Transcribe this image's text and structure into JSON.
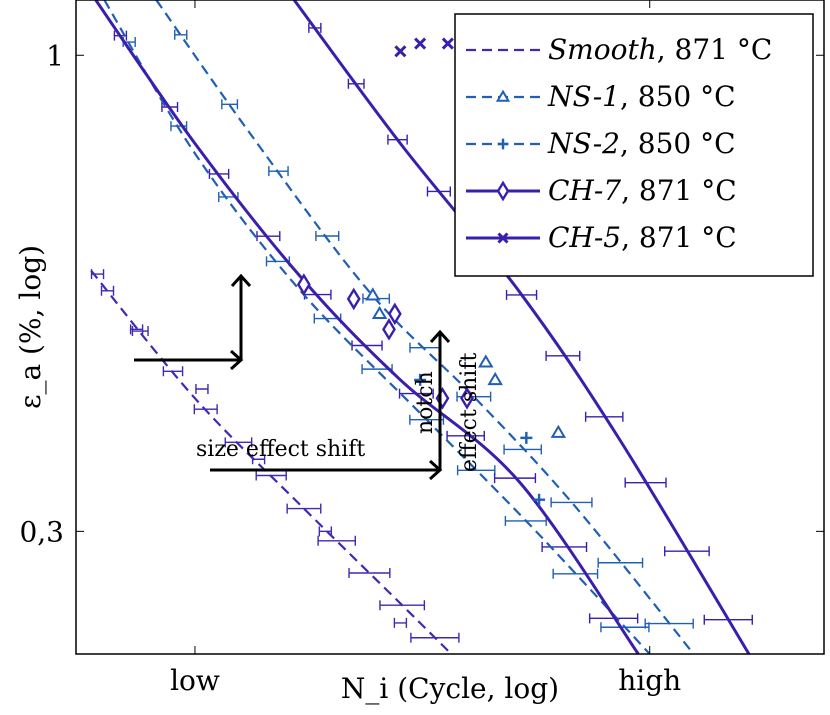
{
  "chart_data": {
    "type": "line",
    "title": "",
    "xlabel": "N_i (Cycle, log)",
    "ylabel": "ε_a (%, log)",
    "x_scale": "log",
    "y_scale": "log",
    "xlim": [
      1,
      1000
    ],
    "ylim": [
      0.22,
      1.15
    ],
    "x_ticks": [
      {
        "value": 3,
        "label": "low"
      },
      {
        "value": 200,
        "label": "high"
      }
    ],
    "y_ticks": [
      {
        "value": 1,
        "label": "1"
      },
      {
        "value": 0.3,
        "label": "0,3"
      }
    ],
    "legend": {
      "position": "top-right",
      "entries": [
        {
          "series": "smooth",
          "label_italic": "Smooth",
          "label_rest": ", 871 °C"
        },
        {
          "series": "ns1",
          "label_italic": "NS-1",
          "label_rest": ", 850 °C"
        },
        {
          "series": "ns2",
          "label_italic": "NS-2",
          "label_rest": ", 850 °C"
        },
        {
          "series": "ch7",
          "label_italic": "CH-7",
          "label_rest": ", 871 °C"
        },
        {
          "series": "ch5",
          "label_italic": "CH-5",
          "label_rest": ", 871 °C"
        }
      ]
    },
    "colors": {
      "smooth": "#4029b3",
      "ns": "#1f5fb4",
      "ch": "#3a1fad",
      "arrow": "#000000"
    },
    "series": [
      {
        "id": "smooth",
        "style": "dashed",
        "marker": "none",
        "curve": [
          [
            1.15,
            0.58
          ],
          [
            3,
            0.42
          ],
          [
            8,
            0.32
          ],
          [
            20,
            0.25
          ],
          [
            32,
            0.22
          ]
        ],
        "scatter": [
          [
            1.22,
            0.575
          ],
          [
            1.75,
            0.5
          ],
          [
            3.2,
            0.43
          ],
          [
            5.4,
            0.36
          ],
          [
            10,
            0.3
          ],
          [
            20,
            0.238
          ]
        ]
      },
      {
        "id": "ns1",
        "style": "dashed",
        "marker": "triangle",
        "curve": [
          [
            2.1,
            1.15
          ],
          [
            5,
            0.82
          ],
          [
            15,
            0.55
          ],
          [
            40,
            0.42
          ],
          [
            100,
            0.32
          ],
          [
            300,
            0.22
          ]
        ],
        "points": [
          [
            15.5,
            0.545
          ],
          [
            16.5,
            0.52
          ],
          [
            44,
            0.46
          ],
          [
            48,
            0.44
          ],
          [
            86,
            0.385
          ]
        ]
      },
      {
        "id": "ns2",
        "style": "dashed",
        "marker": "plus",
        "curve": [
          [
            1.3,
            1.15
          ],
          [
            3,
            0.78
          ],
          [
            8,
            0.55
          ],
          [
            25,
            0.4
          ],
          [
            70,
            0.3
          ],
          [
            200,
            0.22
          ]
        ],
        "points": [
          [
            24,
            0.44
          ],
          [
            64,
            0.38
          ],
          [
            72,
            0.325
          ]
        ]
      },
      {
        "id": "ch7",
        "style": "solid",
        "marker": "diamond",
        "curve": [
          [
            1.2,
            1.15
          ],
          [
            3,
            0.8
          ],
          [
            8,
            0.57
          ],
          [
            20,
            0.44
          ],
          [
            60,
            0.34
          ],
          [
            180,
            0.22
          ]
        ],
        "points": [
          [
            8.2,
            0.56
          ],
          [
            13,
            0.54
          ],
          [
            18,
            0.5
          ],
          [
            19,
            0.52
          ],
          [
            29.5,
            0.42
          ],
          [
            37,
            0.42
          ]
        ]
      },
      {
        "id": "ch5",
        "style": "solid",
        "marker": "cross",
        "curve": [
          [
            7.5,
            1.15
          ],
          [
            20,
            0.8
          ],
          [
            60,
            0.55
          ],
          [
            150,
            0.38
          ],
          [
            500,
            0.22
          ]
        ],
        "points": [
          [
            20,
            1.01
          ],
          [
            24,
            1.03
          ],
          [
            31,
            1.03
          ],
          [
            60,
            0.74
          ]
        ]
      }
    ],
    "annotations": [
      {
        "text": "size effect shift"
      },
      {
        "text": "notch"
      },
      {
        "text": "effect shift"
      }
    ]
  }
}
